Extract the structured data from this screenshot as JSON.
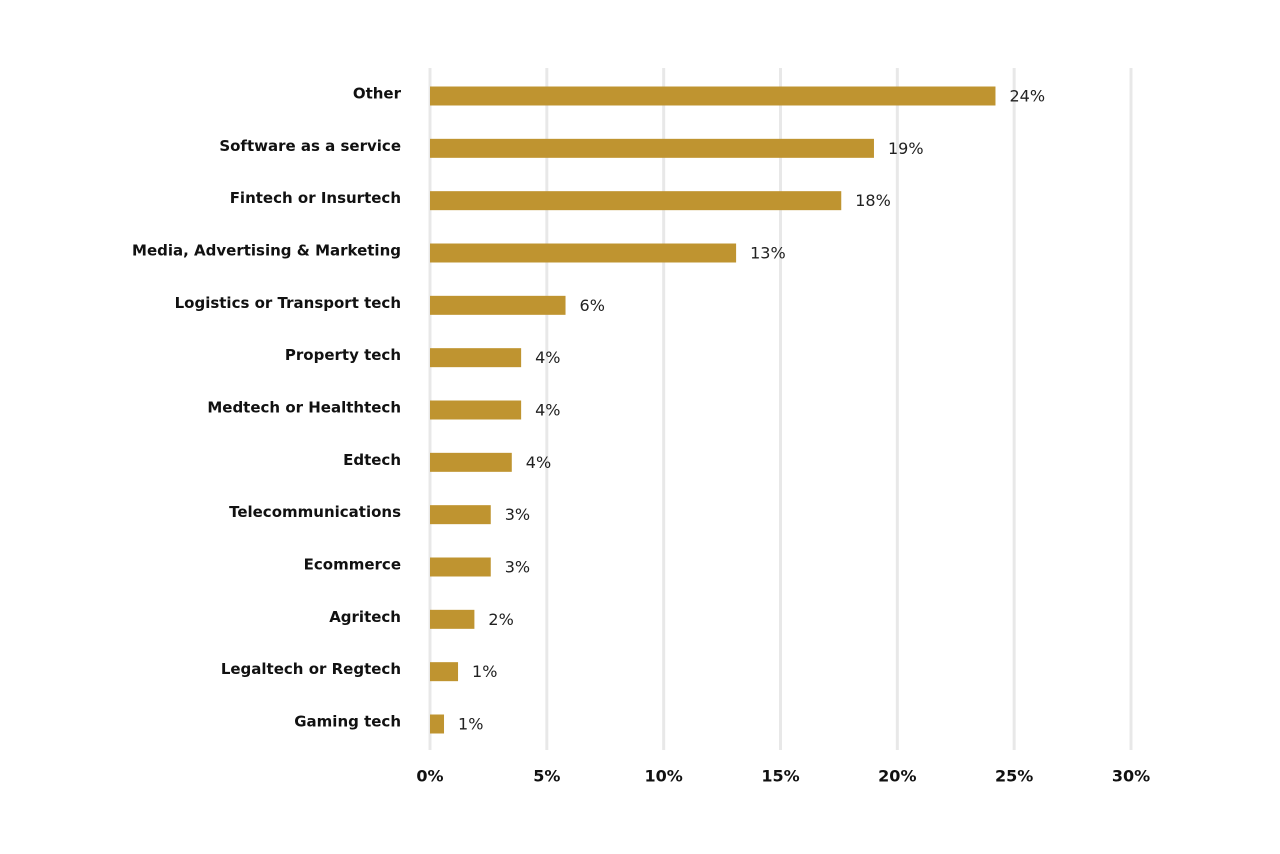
{
  "chart_data": {
    "type": "barh",
    "categories": [
      "Other",
      "Software as a service",
      "Fintech or Insurtech",
      "Media, Advertising & Marketing",
      "Logistics or Transport tech",
      "Property tech",
      "Medtech or Healthtech",
      "Edtech",
      "Telecommunications",
      "Ecommerce",
      "Agritech",
      "Legaltech or Regtech",
      "Gaming tech"
    ],
    "values": [
      24.2,
      19.0,
      17.6,
      13.1,
      5.8,
      3.9,
      3.9,
      3.5,
      2.6,
      2.6,
      1.9,
      1.2,
      0.6
    ],
    "value_labels": [
      "24%",
      "19%",
      "18%",
      "13%",
      "6%",
      "4%",
      "4%",
      "4%",
      "3%",
      "3%",
      "2%",
      "1%",
      "1%"
    ],
    "color": "#bf9430",
    "xlim": [
      0,
      30
    ],
    "xticks": [
      {
        "value": 0,
        "label": "0%"
      },
      {
        "value": 5,
        "label": "5%"
      },
      {
        "value": 10,
        "label": "10%"
      },
      {
        "value": 15,
        "label": "15%"
      },
      {
        "value": 20,
        "label": "20%"
      },
      {
        "value": 25,
        "label": "25%"
      },
      {
        "value": 30,
        "label": "30%"
      }
    ],
    "grid": true
  }
}
